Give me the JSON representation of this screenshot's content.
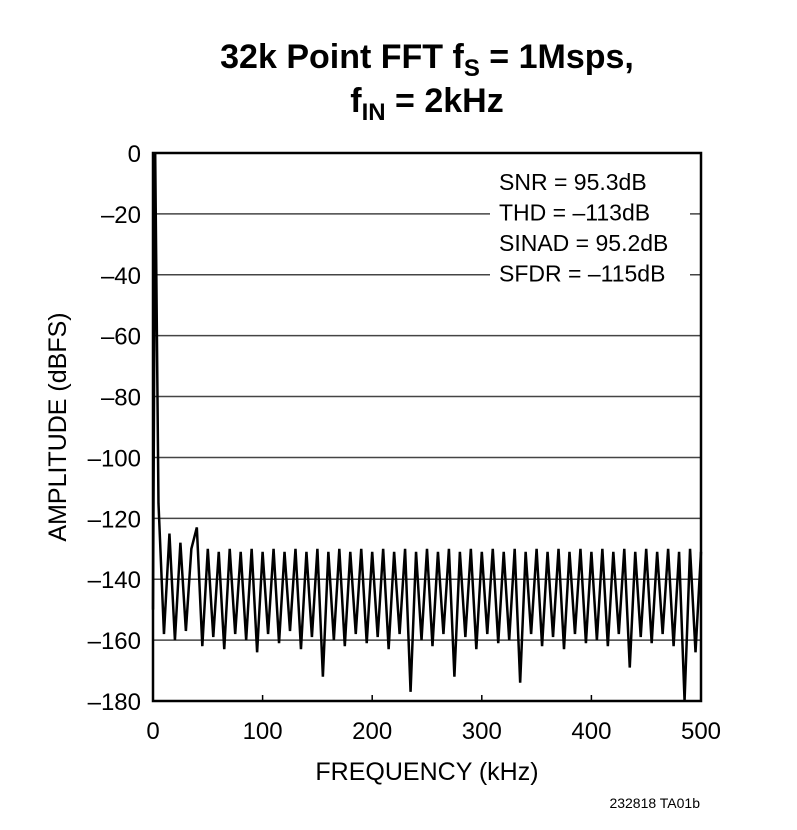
{
  "chart_data": {
    "type": "line",
    "title_lines": [
      {
        "text": "32k Point FFT f",
        "sub": "S",
        "after": " = 1Msps,"
      },
      {
        "text": "f",
        "sub": "IN",
        "after": " = 2kHz"
      }
    ],
    "xlabel": "FREQUENCY (kHz)",
    "ylabel": "AMPLITUDE (dBFS)",
    "annotations": [
      "SNR = 95.3dB",
      "THD = –113dB",
      "SINAD = 95.2dB",
      "SFDR = –115dB"
    ],
    "footnote": "232818 TA01b",
    "xlim": [
      0,
      500
    ],
    "ylim": [
      -180,
      0
    ],
    "xticks": [
      0,
      100,
      200,
      300,
      400,
      500
    ],
    "yticks": [
      0,
      {
        "value": -20,
        "label": "–20"
      },
      {
        "value": -40,
        "label": "–40"
      },
      {
        "value": -60,
        "label": "–60"
      },
      {
        "value": -80,
        "label": "–80"
      },
      {
        "value": -100,
        "label": "–100"
      },
      {
        "value": -120,
        "label": "–120"
      },
      {
        "value": -140,
        "label": "–140"
      },
      {
        "value": -160,
        "label": "–160"
      },
      {
        "value": -180,
        "label": "–180"
      }
    ],
    "grid": true,
    "color": "#000000",
    "x": [
      0,
      2,
      5,
      10,
      15,
      20,
      25,
      30,
      35,
      40,
      45,
      50,
      55,
      60,
      65,
      70,
      75,
      80,
      85,
      90,
      95,
      100,
      105,
      110,
      115,
      120,
      125,
      130,
      135,
      140,
      145,
      150,
      155,
      160,
      165,
      170,
      175,
      180,
      185,
      190,
      195,
      200,
      205,
      210,
      215,
      220,
      225,
      230,
      235,
      240,
      245,
      250,
      255,
      260,
      265,
      270,
      275,
      280,
      285,
      290,
      295,
      300,
      305,
      310,
      315,
      320,
      325,
      330,
      335,
      340,
      345,
      350,
      355,
      360,
      365,
      370,
      375,
      380,
      385,
      390,
      395,
      400,
      405,
      410,
      415,
      420,
      425,
      430,
      435,
      440,
      445,
      450,
      455,
      460,
      465,
      470,
      475,
      480,
      485,
      490,
      495,
      500
    ],
    "values": [
      -150,
      0,
      -115,
      -158,
      -125,
      -160,
      -128,
      -157,
      -130,
      -123,
      -162,
      -130,
      -159,
      -131,
      -163,
      -130,
      -158,
      -131,
      -160,
      -130,
      -164,
      -131,
      -158,
      -130,
      -161,
      -131,
      -157,
      -130,
      -163,
      -131,
      -159,
      -130,
      -172,
      -131,
      -160,
      -130,
      -162,
      -131,
      -158,
      -130,
      -161,
      -131,
      -159,
      -130,
      -163,
      -131,
      -158,
      -130,
      -177,
      -131,
      -160,
      -130,
      -162,
      -131,
      -158,
      -130,
      -172,
      -131,
      -159,
      -130,
      -163,
      -131,
      -158,
      -130,
      -161,
      -131,
      -160,
      -130,
      -174,
      -131,
      -158,
      -130,
      -162,
      -131,
      -159,
      -130,
      -163,
      -131,
      -158,
      -130,
      -161,
      -131,
      -160,
      -130,
      -162,
      -131,
      -158,
      -130,
      -169,
      -131,
      -159,
      -130,
      -161,
      -131,
      -158,
      -130,
      -162,
      -131,
      -180,
      -130,
      -164,
      -131
    ]
  }
}
